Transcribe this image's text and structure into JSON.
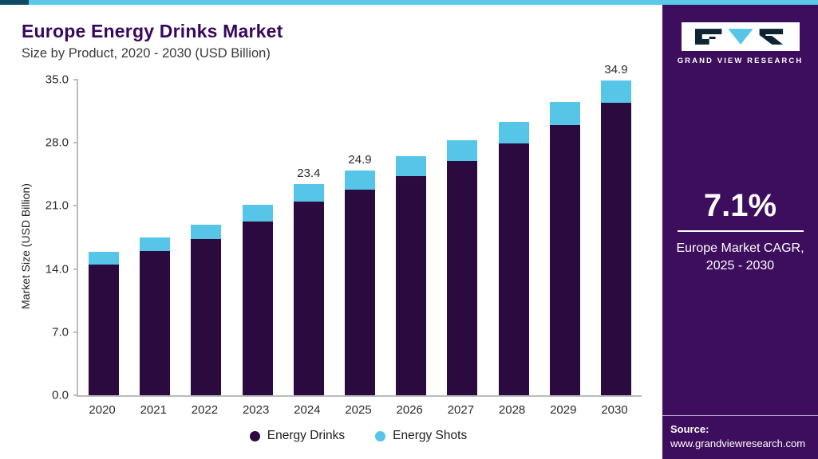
{
  "header": {
    "title": "Europe Energy Drinks Market",
    "subtitle": "Size by Product, 2020 - 2030 (USD Billion)"
  },
  "chart_data": {
    "type": "bar",
    "stacked": true,
    "title": "Europe Energy Drinks Market Size by Product, 2020 - 2030 (USD Billion)",
    "categories": [
      "2020",
      "2021",
      "2022",
      "2023",
      "2024",
      "2025",
      "2026",
      "2027",
      "2028",
      "2029",
      "2030"
    ],
    "series": [
      {
        "name": "Energy Drinks",
        "color": "#2a0a3f",
        "values": [
          14.5,
          16.0,
          17.3,
          19.3,
          21.5,
          22.8,
          24.3,
          26.0,
          27.9,
          30.0,
          32.4
        ]
      },
      {
        "name": "Energy Shots",
        "color": "#56c5e8",
        "values": [
          1.4,
          1.5,
          1.6,
          1.8,
          1.9,
          2.1,
          2.2,
          2.3,
          2.4,
          2.5,
          2.5
        ]
      }
    ],
    "totals_labeled": {
      "2024": "23.4",
      "2025": "24.9",
      "2030": "34.9"
    },
    "xlabel": "",
    "ylabel": "Market Size (USD Billion)",
    "ylim": [
      0,
      35
    ],
    "yticks": [
      0,
      7,
      14,
      21,
      28,
      35
    ],
    "ytick_labels": [
      "0.0",
      "7.0",
      "14.0",
      "21.0",
      "28.0",
      "35.0"
    ],
    "grid": false,
    "legend_position": "bottom"
  },
  "sidebar": {
    "logo_text": "GRAND VIEW RESEARCH",
    "cagr_value": "7.1%",
    "cagr_label": "Europe Market CAGR,",
    "cagr_sublabel": "2025 - 2030",
    "source_label": "Source:",
    "source_url": "www.grandviewresearch.com"
  },
  "colors": {
    "title_purple": "#38085c",
    "sidebar_purple": "#3e0e5e",
    "bar_dark_purple": "#2a0a3f",
    "bar_light_blue": "#56c5e8",
    "top_stripe_blue": "#5bc8ea",
    "top_stripe_accent": "#0e4a66",
    "axis_gray": "#b9bcc0"
  }
}
